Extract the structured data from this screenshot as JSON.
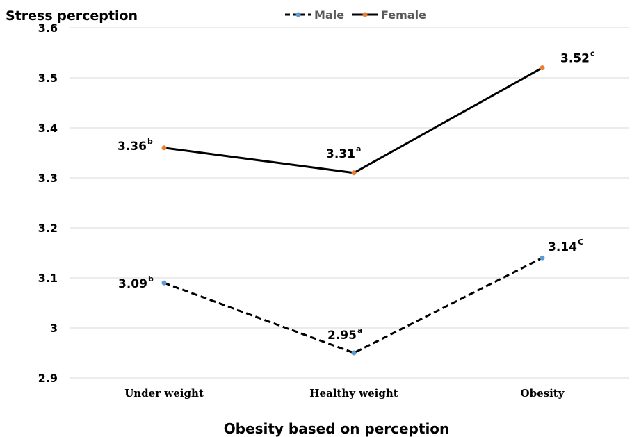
{
  "chart_data": {
    "type": "line",
    "title": "",
    "ylabel": "Stress perception",
    "xlabel": "Obesity based on perception",
    "categories": [
      "Under weight",
      "Healthy weight",
      "Obesity"
    ],
    "ylim": [
      2.9,
      3.6
    ],
    "yticks": [
      "2.9",
      "3",
      "3.1",
      "3.2",
      "3.3",
      "3.4",
      "3.5",
      "3.6"
    ],
    "ytick_values": [
      2.9,
      3.0,
      3.1,
      3.2,
      3.3,
      3.4,
      3.5,
      3.6
    ],
    "grid": true,
    "legend_position": "top",
    "series": [
      {
        "name": "Male",
        "line_style": "dashed",
        "line_color": "#000000",
        "marker_color": "#5b9bd5",
        "values": [
          3.09,
          2.95,
          3.14
        ],
        "labels": [
          "3.09",
          "2.95",
          "3.14"
        ],
        "superscripts": [
          "b",
          "a",
          "C"
        ]
      },
      {
        "name": "Female",
        "line_style": "solid",
        "line_color": "#000000",
        "marker_color": "#ed7d31",
        "values": [
          3.36,
          3.31,
          3.52
        ],
        "labels": [
          "3.36",
          "3.31",
          "3.52"
        ],
        "superscripts": [
          "b",
          "a",
          "c"
        ]
      }
    ]
  }
}
